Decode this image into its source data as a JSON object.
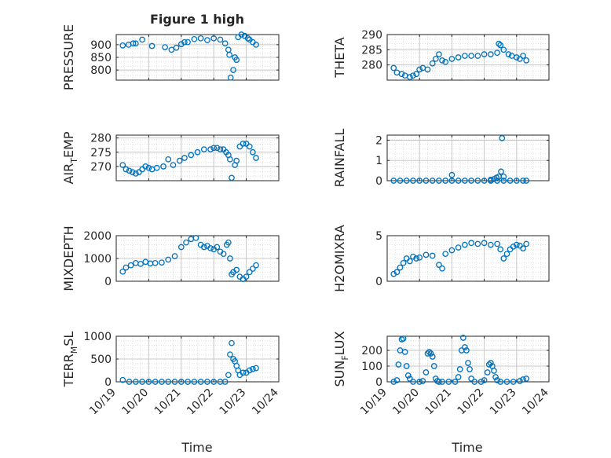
{
  "figure": {
    "title": "Figure 1 high",
    "xlabel": "Time",
    "xticks": [
      "10/19",
      "10/20",
      "10/21",
      "10/22",
      "10/23",
      "10/24"
    ],
    "colors": {
      "marker": "#0072bd",
      "axis": "#262626",
      "grid": "#d9d9d9",
      "background": "#ffffff"
    }
  },
  "chart_data": [
    {
      "type": "scatter",
      "ylabel": "PRESSURE",
      "ylim": [
        760,
        940
      ],
      "yticks": [
        {
          "value": 800,
          "label": "800"
        },
        {
          "value": 850,
          "label": "850"
        },
        {
          "value": 900,
          "label": "900"
        }
      ],
      "grid": true,
      "xlim": [
        0,
        5
      ],
      "series": [
        {
          "x": [
            0.2,
            0.38,
            0.52,
            0.6,
            0.8,
            1.1,
            1.5,
            1.7,
            1.85,
            2.0,
            2.1,
            2.2,
            2.4,
            2.6,
            2.8,
            3.0,
            3.2,
            3.35,
            3.45,
            3.48,
            3.52,
            3.6,
            3.65,
            3.7,
            3.75,
            3.85,
            3.95,
            4.05,
            4.1,
            4.2,
            4.3
          ],
          "y": [
            897,
            900,
            905,
            905,
            920,
            895,
            890,
            880,
            888,
            902,
            910,
            910,
            922,
            925,
            918,
            925,
            920,
            905,
            880,
            860,
            770,
            800,
            850,
            840,
            930,
            940,
            935,
            925,
            920,
            910,
            900
          ]
        }
      ]
    },
    {
      "type": "scatter",
      "ylabel": "THETA",
      "ylim": [
        275,
        290
      ],
      "yticks": [
        {
          "value": 280,
          "label": "280"
        },
        {
          "value": 285,
          "label": "285"
        },
        {
          "value": 290,
          "label": "290"
        }
      ],
      "grid": true,
      "xlim": [
        0,
        5
      ],
      "series": [
        {
          "x": [
            0.2,
            0.3,
            0.45,
            0.55,
            0.7,
            0.8,
            0.9,
            1.0,
            1.1,
            1.25,
            1.4,
            1.5,
            1.6,
            1.7,
            1.8,
            2.0,
            2.2,
            2.4,
            2.6,
            2.8,
            3.0,
            3.2,
            3.4,
            3.45,
            3.5,
            3.6,
            3.75,
            3.85,
            4.0,
            4.1,
            4.2,
            4.3
          ],
          "y": [
            279,
            277.5,
            277,
            276.5,
            276,
            276.5,
            277,
            278.5,
            279,
            278.5,
            280.5,
            282,
            283.5,
            281.5,
            281,
            282,
            282.5,
            283,
            283,
            283,
            283.5,
            283.5,
            284,
            287,
            286.5,
            285,
            283.5,
            283,
            282.5,
            282,
            283,
            281.5
          ]
        }
      ]
    },
    {
      "type": "scatter",
      "ylabel": "AIR_TEMP",
      "ylim": [
        265,
        281
      ],
      "yticks": [
        {
          "value": 270,
          "label": "270"
        },
        {
          "value": 275,
          "label": "275"
        },
        {
          "value": 280,
          "label": "280"
        }
      ],
      "grid": true,
      "xlim": [
        0,
        5
      ],
      "series": [
        {
          "x": [
            0.2,
            0.3,
            0.4,
            0.5,
            0.6,
            0.7,
            0.8,
            0.9,
            1.0,
            1.1,
            1.25,
            1.45,
            1.6,
            1.75,
            1.95,
            2.1,
            2.3,
            2.5,
            2.7,
            2.9,
            3.0,
            3.1,
            3.2,
            3.3,
            3.38,
            3.45,
            3.5,
            3.55,
            3.65,
            3.7,
            3.8,
            3.9,
            4.0,
            4.1,
            4.2,
            4.3
          ],
          "y": [
            270.5,
            269,
            268.5,
            268,
            267.5,
            268,
            269,
            270,
            269.5,
            269,
            269.5,
            270,
            272.5,
            270.5,
            272,
            273,
            274,
            275,
            276,
            276,
            276.5,
            276.5,
            276,
            276,
            275,
            274,
            272.5,
            266,
            270.5,
            272,
            277,
            278,
            278,
            277,
            275,
            273
          ]
        }
      ]
    },
    {
      "type": "scatter",
      "ylabel": "RAINFALL",
      "ylim": [
        0,
        2.25
      ],
      "yticks": [
        {
          "value": 0,
          "label": "0"
        },
        {
          "value": 1,
          "label": "1"
        },
        {
          "value": 2,
          "label": "2"
        }
      ],
      "grid": true,
      "xlim": [
        0,
        5
      ],
      "series": [
        {
          "x": [
            0.2,
            0.4,
            0.6,
            0.8,
            1.0,
            1.2,
            1.4,
            1.6,
            1.8,
            2.0,
            2.2,
            2.4,
            2.6,
            2.8,
            3.0,
            3.2,
            3.4,
            3.6,
            3.8,
            4.0,
            4.2,
            4.3,
            2.0,
            3.2,
            3.3,
            3.38,
            3.45,
            3.52,
            3.55,
            3.6
          ],
          "y": [
            0,
            0,
            0,
            0,
            0,
            0,
            0,
            0,
            0,
            0,
            0,
            0,
            0,
            0,
            0,
            0,
            0,
            0,
            0,
            0,
            0,
            0,
            0.28,
            0.05,
            0.08,
            0.15,
            0.2,
            0.45,
            2.1,
            0.2
          ]
        }
      ]
    },
    {
      "type": "scatter",
      "ylabel": "MIXDEPTH",
      "ylim": [
        0,
        2000
      ],
      "yticks": [
        {
          "value": 0,
          "label": "0"
        },
        {
          "value": 1000,
          "label": "1000"
        },
        {
          "value": 2000,
          "label": "2000"
        }
      ],
      "grid": true,
      "xlim": [
        0,
        5
      ],
      "series": [
        {
          "x": [
            0.2,
            0.3,
            0.45,
            0.6,
            0.75,
            0.9,
            1.05,
            1.2,
            1.4,
            1.6,
            1.8,
            2.0,
            2.15,
            2.3,
            2.45,
            2.6,
            2.7,
            2.8,
            2.9,
            3.0,
            3.1,
            3.2,
            3.3,
            3.4,
            3.45,
            3.5,
            3.55,
            3.6,
            3.7,
            3.8,
            3.9,
            4.0,
            4.1,
            4.2,
            4.3
          ],
          "y": [
            420,
            600,
            700,
            800,
            760,
            850,
            780,
            800,
            820,
            950,
            1100,
            1500,
            1700,
            1850,
            1900,
            1600,
            1500,
            1550,
            1450,
            1400,
            1500,
            1300,
            1200,
            1600,
            1700,
            1000,
            300,
            400,
            500,
            200,
            100,
            200,
            400,
            550,
            700
          ]
        }
      ]
    },
    {
      "type": "scatter",
      "ylabel": "H2OMIXRA",
      "ylim": [
        0,
        5
      ],
      "yticks": [
        {
          "value": 0,
          "label": "0"
        },
        {
          "value": 5,
          "label": "5"
        }
      ],
      "grid": true,
      "xlim": [
        0,
        5
      ],
      "series": [
        {
          "x": [
            0.2,
            0.3,
            0.4,
            0.5,
            0.6,
            0.7,
            0.8,
            0.9,
            1.0,
            1.2,
            1.4,
            1.6,
            1.7,
            1.8,
            2.0,
            2.2,
            2.4,
            2.6,
            2.8,
            3.0,
            3.2,
            3.4,
            3.5,
            3.6,
            3.7,
            3.8,
            3.9,
            4.0,
            4.1,
            4.2,
            4.3
          ],
          "y": [
            0.8,
            1.0,
            1.5,
            2.0,
            2.5,
            2.2,
            2.7,
            2.5,
            2.6,
            2.9,
            2.8,
            1.8,
            1.4,
            3.0,
            3.4,
            3.7,
            4.0,
            4.2,
            4.1,
            4.2,
            4.0,
            4.1,
            3.5,
            2.5,
            3.0,
            3.5,
            3.8,
            4.0,
            3.9,
            3.6,
            4.1
          ]
        }
      ]
    },
    {
      "type": "scatter",
      "ylabel": "TERR_MSL",
      "ylim": [
        0,
        1000
      ],
      "yticks": [
        {
          "value": 0,
          "label": "0"
        },
        {
          "value": 500,
          "label": "500"
        },
        {
          "value": 1000,
          "label": "1000"
        }
      ],
      "grid": true,
      "xlim": [
        0,
        5
      ],
      "series": [
        {
          "x": [
            0.2,
            0.4,
            0.6,
            0.8,
            1.0,
            1.2,
            1.4,
            1.6,
            1.8,
            2.0,
            2.2,
            2.4,
            2.6,
            2.8,
            3.0,
            3.2,
            3.35,
            3.45,
            3.5,
            3.55,
            3.6,
            3.65,
            3.7,
            3.75,
            3.8,
            3.9,
            4.0,
            4.1,
            4.2,
            4.3
          ],
          "y": [
            40,
            0,
            0,
            0,
            0,
            0,
            0,
            0,
            0,
            0,
            0,
            0,
            0,
            0,
            0,
            0,
            0,
            150,
            600,
            850,
            500,
            450,
            350,
            250,
            150,
            200,
            200,
            250,
            280,
            300
          ]
        }
      ]
    },
    {
      "type": "scatter",
      "ylabel": "SUN_FLUX",
      "ylim": [
        0,
        290
      ],
      "yticks": [
        {
          "value": 0,
          "label": "0"
        },
        {
          "value": 100,
          "label": "100"
        },
        {
          "value": 200,
          "label": "200"
        }
      ],
      "grid": true,
      "xlim": [
        0,
        5
      ],
      "series": [
        {
          "x": [
            0.2,
            0.3,
            0.35,
            0.4,
            0.45,
            0.5,
            0.55,
            0.6,
            0.65,
            0.7,
            0.8,
            1.0,
            1.1,
            1.2,
            1.25,
            1.3,
            1.35,
            1.4,
            1.45,
            1.5,
            1.55,
            1.6,
            1.7,
            1.9,
            2.1,
            2.2,
            2.25,
            2.3,
            2.35,
            2.4,
            2.45,
            2.5,
            2.55,
            2.6,
            2.7,
            2.9,
            3.0,
            3.1,
            3.15,
            3.2,
            3.25,
            3.3,
            3.35,
            3.4,
            3.5,
            3.7,
            3.9,
            4.1,
            4.2,
            4.3
          ],
          "y": [
            0,
            10,
            110,
            200,
            270,
            275,
            190,
            100,
            40,
            20,
            0,
            0,
            5,
            60,
            180,
            190,
            180,
            160,
            100,
            20,
            5,
            0,
            0,
            0,
            0,
            30,
            80,
            200,
            280,
            220,
            200,
            120,
            80,
            20,
            0,
            0,
            10,
            60,
            110,
            120,
            100,
            70,
            30,
            10,
            0,
            0,
            0,
            5,
            15,
            20
          ]
        }
      ]
    }
  ]
}
